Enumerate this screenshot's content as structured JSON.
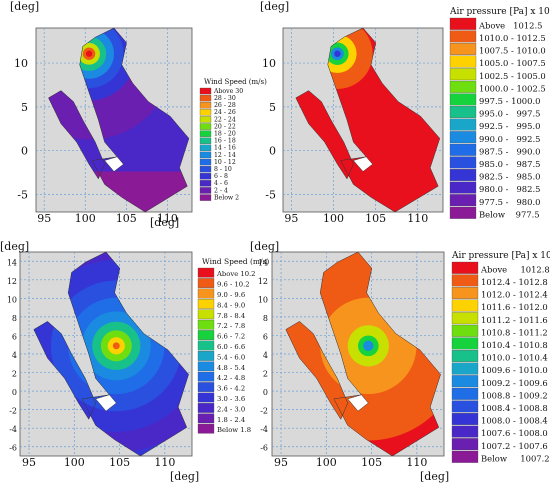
{
  "panels": [
    {
      "name": "wind-speed-top",
      "kind": "wind",
      "axis_unit": "[deg]",
      "x_ticks": [
        "95",
        "100",
        "105",
        "110"
      ],
      "y_ticks": [
        "-5",
        "0",
        "5",
        "10"
      ],
      "legend": {
        "title": "Wind Speed (m/s)",
        "entries": [
          {
            "label": "Above 30",
            "color": "#e8101c"
          },
          {
            "label": "28 - 30",
            "color": "#ef5a14"
          },
          {
            "label": "26 - 28",
            "color": "#f7941d"
          },
          {
            "label": "24 - 26",
            "color": "#fed200"
          },
          {
            "label": "22 - 24",
            "color": "#c8e000"
          },
          {
            "label": "20 - 22",
            "color": "#6ede10"
          },
          {
            "label": "18 - 20",
            "color": "#16d23c"
          },
          {
            "label": "16 - 18",
            "color": "#18c08a"
          },
          {
            "label": "14 - 16",
            "color": "#1aa6c8"
          },
          {
            "label": "12 - 14",
            "color": "#1a8be0"
          },
          {
            "label": "10 - 12",
            "color": "#1f6ee8"
          },
          {
            "label": "8 - 10",
            "color": "#2a50e0"
          },
          {
            "label": "6 - 8",
            "color": "#3535d6"
          },
          {
            "label": "4 - 6",
            "color": "#4a28c8"
          },
          {
            "label": "2 - 4",
            "color": "#6a1fb0"
          },
          {
            "label": "Below 2",
            "color": "#8a1a96"
          }
        ]
      }
    },
    {
      "name": "air-pressure-top",
      "kind": "pressure",
      "axis_unit": "[deg]",
      "x_ticks": [
        "95",
        "100",
        "105",
        "110"
      ],
      "y_ticks": [
        "-5",
        "0",
        "5",
        "10"
      ],
      "legend": {
        "title": "Air pressure [Pa]  x 10",
        "title_exp": "2",
        "entries": [
          {
            "label": "Above   1012.5",
            "color": "#e8101c"
          },
          {
            "label": "1010.0 - 1012.5",
            "color": "#ef5a14"
          },
          {
            "label": "1007.5 - 1010.0",
            "color": "#f7941d"
          },
          {
            "label": "1005.0 - 1007.5",
            "color": "#fed200"
          },
          {
            "label": "1002.5 - 1005.0",
            "color": "#c8e000"
          },
          {
            "label": "1000.0 - 1002.5",
            "color": "#6ede10"
          },
          {
            "label": "997.5 - 1000.0",
            "color": "#16d23c"
          },
          {
            "label": "995.0 -   997.5",
            "color": "#18c08a"
          },
          {
            "label": "992.5 -   995.0",
            "color": "#1aa6c8"
          },
          {
            "label": "990.0 -   992.5",
            "color": "#1a8be0"
          },
          {
            "label": "987.5 -   990.0",
            "color": "#1f6ee8"
          },
          {
            "label": "985.0 -   987.5",
            "color": "#2a50e0"
          },
          {
            "label": "982.5 -   985.0",
            "color": "#3535d6"
          },
          {
            "label": "980.0 -   982.5",
            "color": "#4a28c8"
          },
          {
            "label": "977.5 -   980.0",
            "color": "#6a1fb0"
          },
          {
            "label": "Below    977.5",
            "color": "#8a1a96"
          }
        ]
      }
    },
    {
      "name": "wind-speed-bottom",
      "kind": "wind",
      "axis_unit": "[deg]",
      "x_ticks": [
        "95",
        "100",
        "105",
        "110"
      ],
      "y_ticks": [
        "-6",
        "-4",
        "-2",
        "0",
        "2",
        "4",
        "6",
        "8",
        "10",
        "12",
        "14"
      ],
      "legend": {
        "title": "Wind Speed (m/s)",
        "entries": [
          {
            "label": "Above 10.2",
            "color": "#e8101c"
          },
          {
            "label": "9.6 - 10.2",
            "color": "#ef5a14"
          },
          {
            "label": "9.0 - 9.6",
            "color": "#f7941d"
          },
          {
            "label": "8.4 - 9.0",
            "color": "#fed200"
          },
          {
            "label": "7.8 - 8.4",
            "color": "#c8e000"
          },
          {
            "label": "7.2 - 7.8",
            "color": "#6ede10"
          },
          {
            "label": "6.6 - 7.2",
            "color": "#16d23c"
          },
          {
            "label": "6.0 - 6.6",
            "color": "#18c08a"
          },
          {
            "label": "5.4 - 6.0",
            "color": "#1aa6c8"
          },
          {
            "label": "4.8 - 5.4",
            "color": "#1a8be0"
          },
          {
            "label": "4.2 - 4.8",
            "color": "#1f6ee8"
          },
          {
            "label": "3.6 - 4.2",
            "color": "#2a50e0"
          },
          {
            "label": "3.0 - 3.6",
            "color": "#3535d6"
          },
          {
            "label": "2.4 - 3.0",
            "color": "#4a28c8"
          },
          {
            "label": "1.8 - 2.4",
            "color": "#6a1fb0"
          },
          {
            "label": "Below 1.8",
            "color": "#8a1a96"
          }
        ]
      }
    },
    {
      "name": "air-pressure-bottom",
      "kind": "pressure",
      "axis_unit": "[deg]",
      "x_ticks": [
        "95",
        "100",
        "105",
        "110"
      ],
      "y_ticks": [
        "-6",
        "-4",
        "-2",
        "0",
        "2",
        "4",
        "6",
        "8",
        "10",
        "12",
        "14"
      ],
      "legend": {
        "title": "Air pressure [Pa]  x 10",
        "title_exp": "2",
        "entries": [
          {
            "label": "Above     1012.8",
            "color": "#e8101c"
          },
          {
            "label": "1012.4 - 1012.8",
            "color": "#ef5a14"
          },
          {
            "label": "1012.0 - 1012.4",
            "color": "#f7941d"
          },
          {
            "label": "1011.6 - 1012.0",
            "color": "#fed200"
          },
          {
            "label": "1011.2 - 1011.6",
            "color": "#c8e000"
          },
          {
            "label": "1010.8 - 1011.2",
            "color": "#6ede10"
          },
          {
            "label": "1010.4 - 1010.8",
            "color": "#16d23c"
          },
          {
            "label": "1010.0 - 1010.4",
            "color": "#18c08a"
          },
          {
            "label": "1009.6 - 1010.0",
            "color": "#1aa6c8"
          },
          {
            "label": "1009.2 - 1009.6",
            "color": "#1a8be0"
          },
          {
            "label": "1008.8 - 1009.2",
            "color": "#1f6ee8"
          },
          {
            "label": "1008.4 - 1008.8",
            "color": "#2a50e0"
          },
          {
            "label": "1008.0 - 1008.4",
            "color": "#3535d6"
          },
          {
            "label": "1007.6 - 1008.0",
            "color": "#4a28c8"
          },
          {
            "label": "1007.2 - 1007.6",
            "color": "#6a1fb0"
          },
          {
            "label": "Below     1007.2",
            "color": "#8a1a96"
          }
        ]
      }
    }
  ]
}
